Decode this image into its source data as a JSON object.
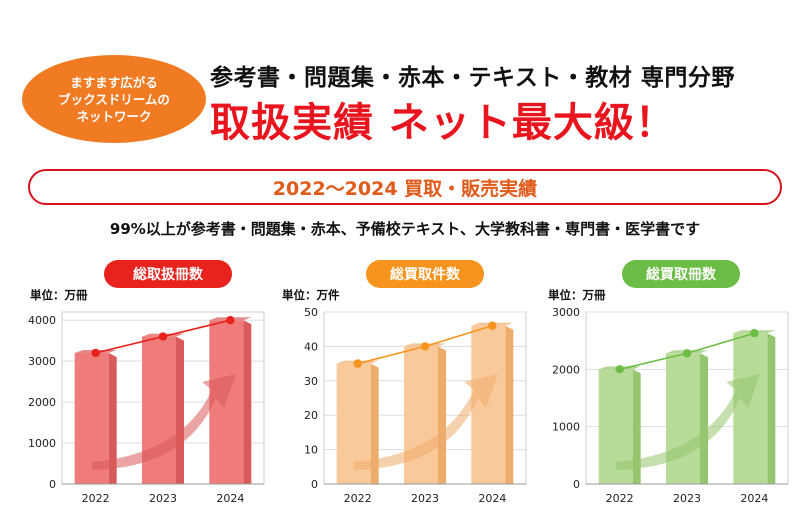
{
  "header": {
    "badge_lines": [
      "ますます広がる",
      "ブックスドリームの",
      "ネットワーク"
    ],
    "subtitle": "参考書・問題集・赤本・テキスト・教材 専門分野",
    "title": "取扱実績 ネット最大級！"
  },
  "banner": {
    "text": "2022～2024 買取・販売実績"
  },
  "note": "99%以上が参考書・問題集・赤本、予備校テキスト、大学教科書・専門書・医学書です",
  "colors": {
    "red": "#e8221c",
    "red_bar": "#ef7b7b",
    "red_bar_dark": "#d95a5a",
    "red_bg": "#fbe1e1",
    "orange": "#f7941d",
    "orange_bar": "#f9c99a",
    "orange_bar_dark": "#eeac6c",
    "orange_bg": "#fdeedd",
    "green": "#6cbd45",
    "green_bar": "#b7dc98",
    "green_bar_dark": "#95c56e",
    "green_bg": "#e7f3dc"
  },
  "chart_data": [
    {
      "type": "bar",
      "title": "総取扱冊数",
      "unit": "単位：万冊",
      "categories": [
        "2022",
        "2023",
        "2024"
      ],
      "values": [
        3200,
        3600,
        4000
      ],
      "ylim": [
        0,
        4200
      ],
      "yticks": [
        0,
        1000,
        2000,
        3000,
        4000
      ],
      "grid": true,
      "trend_line": true,
      "color": "red"
    },
    {
      "type": "bar",
      "title": "総買取件数",
      "unit": "単位：万件",
      "categories": [
        "2022",
        "2023",
        "2024"
      ],
      "values": [
        35,
        40,
        46
      ],
      "ylim": [
        0,
        50
      ],
      "yticks": [
        0,
        10,
        20,
        30,
        40,
        50
      ],
      "grid": true,
      "trend_line": true,
      "color": "orange"
    },
    {
      "type": "bar",
      "title": "総買取冊数",
      "unit": "単位：万冊",
      "categories": [
        "2022",
        "2023",
        "2024"
      ],
      "values": [
        2000,
        2280,
        2630
      ],
      "ylim": [
        0,
        3000
      ],
      "yticks": [
        0,
        1000,
        2000,
        3000
      ],
      "grid": true,
      "trend_line": true,
      "color": "green"
    }
  ]
}
